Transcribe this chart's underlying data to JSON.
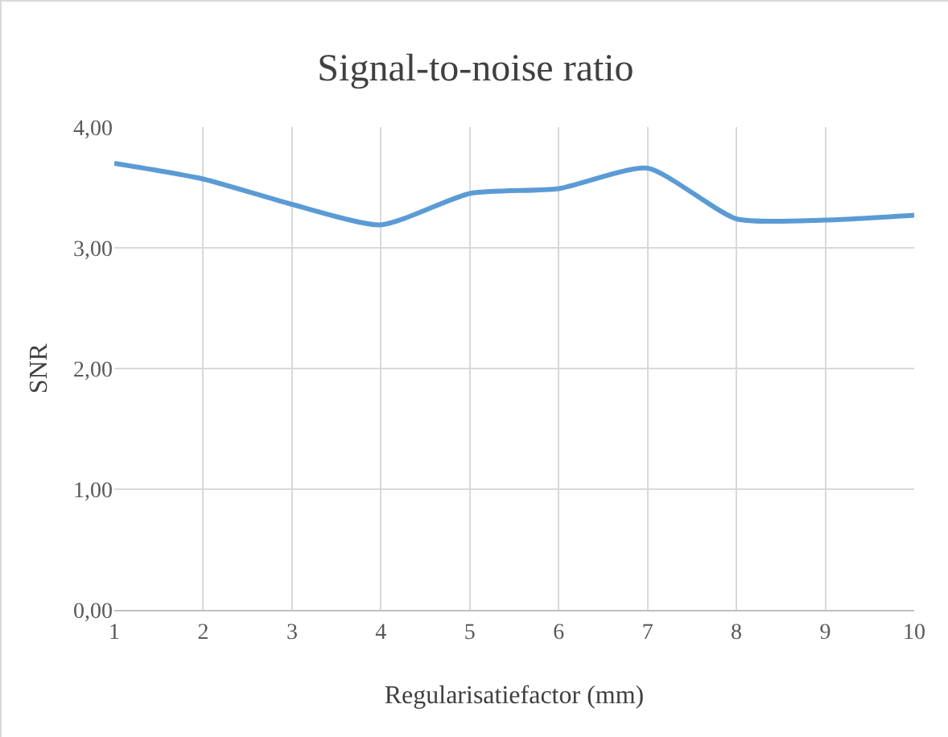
{
  "chart_data": {
    "type": "line",
    "title": "Signal-to-noise ratio",
    "xlabel": "Regularisatiefactor (mm)",
    "ylabel": "SNR",
    "x": [
      1,
      2,
      3,
      4,
      5,
      6,
      7,
      8,
      9,
      10
    ],
    "series": [
      {
        "color": "#5b9bd5",
        "values": [
          3.7,
          3.57,
          3.36,
          3.19,
          3.45,
          3.49,
          3.66,
          3.24,
          3.23,
          3.27
        ]
      }
    ],
    "xlim": [
      1,
      10
    ],
    "xticks": [
      1,
      2,
      3,
      4,
      5,
      6,
      7,
      8,
      9,
      10
    ],
    "ylim": [
      0,
      4
    ],
    "yticks": [
      {
        "value": 0,
        "label": "0,00"
      },
      {
        "value": 1,
        "label": "1,00"
      },
      {
        "value": 2,
        "label": "2,00"
      },
      {
        "value": 3,
        "label": "3,00"
      },
      {
        "value": 4,
        "label": "4,00"
      }
    ],
    "grid": true,
    "legend": false,
    "marker": "none",
    "line_style": "solid"
  }
}
